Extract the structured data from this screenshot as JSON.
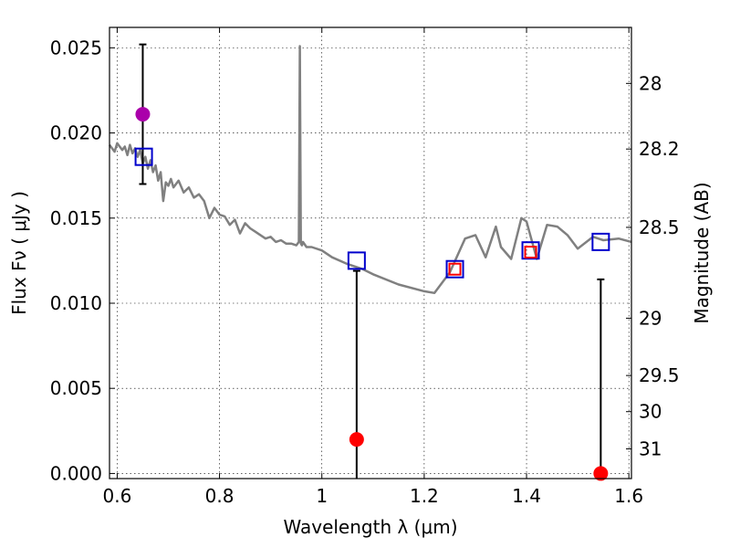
{
  "chart_data": {
    "type": "scatter",
    "xlabel": "Wavelength  λ (μm)",
    "ylabel": "Flux  Fν  ( μJy )",
    "y2label": "Magnitude (AB)",
    "xlim": [
      0.585,
      1.605
    ],
    "ylim": [
      -0.0003,
      0.0262
    ],
    "x_ticks": [
      0.6,
      0.8,
      1.0,
      1.2,
      1.4,
      1.6
    ],
    "x_tick_labels": [
      "0.6",
      "0.8",
      "1",
      "1.2",
      "1.4",
      "1.6"
    ],
    "y_ticks": [
      0.0,
      0.005,
      0.01,
      0.015,
      0.02,
      0.025
    ],
    "y_tick_labels": [
      "0.000",
      "0.005",
      "0.010",
      "0.015",
      "0.020",
      "0.025"
    ],
    "y2_ticks": [
      {
        "mag": 28.0,
        "label": "28"
      },
      {
        "mag": 28.2,
        "label": "28.2"
      },
      {
        "mag": 28.5,
        "label": "28.5"
      },
      {
        "mag": 29.0,
        "label": "29"
      },
      {
        "mag": 29.5,
        "label": "29.5"
      },
      {
        "mag": 30.0,
        "label": "30"
      },
      {
        "mag": 31.0,
        "label": "31"
      }
    ],
    "grid": true,
    "series": [
      {
        "name": "model-spectrum",
        "kind": "line",
        "color": "#808080",
        "x": [
          0.585,
          0.595,
          0.6,
          0.61,
          0.615,
          0.62,
          0.625,
          0.63,
          0.635,
          0.64,
          0.645,
          0.65,
          0.655,
          0.66,
          0.665,
          0.67,
          0.675,
          0.68,
          0.685,
          0.69,
          0.695,
          0.7,
          0.705,
          0.71,
          0.72,
          0.73,
          0.74,
          0.75,
          0.76,
          0.77,
          0.78,
          0.79,
          0.8,
          0.81,
          0.82,
          0.83,
          0.84,
          0.85,
          0.86,
          0.87,
          0.88,
          0.89,
          0.9,
          0.91,
          0.92,
          0.93,
          0.94,
          0.95,
          0.955,
          0.957,
          0.959,
          0.961,
          0.963,
          0.97,
          0.98,
          1.0,
          1.02,
          1.05,
          1.08,
          1.1,
          1.15,
          1.2,
          1.22,
          1.25,
          1.28,
          1.3,
          1.32,
          1.34,
          1.35,
          1.37,
          1.39,
          1.4,
          1.42,
          1.44,
          1.46,
          1.48,
          1.5,
          1.53,
          1.55,
          1.58,
          1.605
        ],
        "y": [
          0.0193,
          0.0189,
          0.0194,
          0.019,
          0.0192,
          0.0187,
          0.0193,
          0.0188,
          0.0191,
          0.0186,
          0.019,
          0.0182,
          0.0186,
          0.0179,
          0.0184,
          0.0177,
          0.0181,
          0.0172,
          0.0177,
          0.016,
          0.0171,
          0.0169,
          0.0173,
          0.0168,
          0.0172,
          0.0165,
          0.0168,
          0.0162,
          0.0164,
          0.016,
          0.015,
          0.0156,
          0.0152,
          0.0151,
          0.0146,
          0.0149,
          0.0141,
          0.0147,
          0.0144,
          0.0142,
          0.014,
          0.0138,
          0.0139,
          0.0136,
          0.0137,
          0.0135,
          0.0135,
          0.0134,
          0.0136,
          0.0251,
          0.0135,
          0.0134,
          0.0136,
          0.0133,
          0.0133,
          0.0131,
          0.0127,
          0.0123,
          0.012,
          0.0117,
          0.0111,
          0.0107,
          0.0106,
          0.0118,
          0.0138,
          0.014,
          0.0127,
          0.0145,
          0.0133,
          0.0126,
          0.015,
          0.0148,
          0.0126,
          0.0146,
          0.0145,
          0.014,
          0.0132,
          0.0139,
          0.0137,
          0.0138,
          0.0136
        ]
      },
      {
        "name": "observed-detection",
        "kind": "points",
        "color": "#aa00aa",
        "x": [
          0.65
        ],
        "y": [
          0.0211
        ],
        "yerr_low": [
          0.017
        ],
        "yerr_high": [
          0.0252
        ]
      },
      {
        "name": "observed-upper-limits",
        "kind": "points",
        "color": "#ff0000",
        "x": [
          1.068,
          1.545
        ],
        "y": [
          0.002,
          0.0
        ],
        "yerr_low": [
          -0.0003,
          -0.0003
        ],
        "yerr_high": [
          0.0119,
          0.0114
        ]
      },
      {
        "name": "model-photometry",
        "kind": "open-squares",
        "color": "#0000cc",
        "x": [
          0.652,
          1.068,
          1.26,
          1.408,
          1.545
        ],
        "y": [
          0.0186,
          0.0125,
          0.012,
          0.0131,
          0.0136
        ]
      },
      {
        "name": "model-photometry-small",
        "kind": "open-squares",
        "color": "#ff0000",
        "x": [
          1.26,
          1.408
        ],
        "y": [
          0.012,
          0.013
        ]
      }
    ]
  }
}
